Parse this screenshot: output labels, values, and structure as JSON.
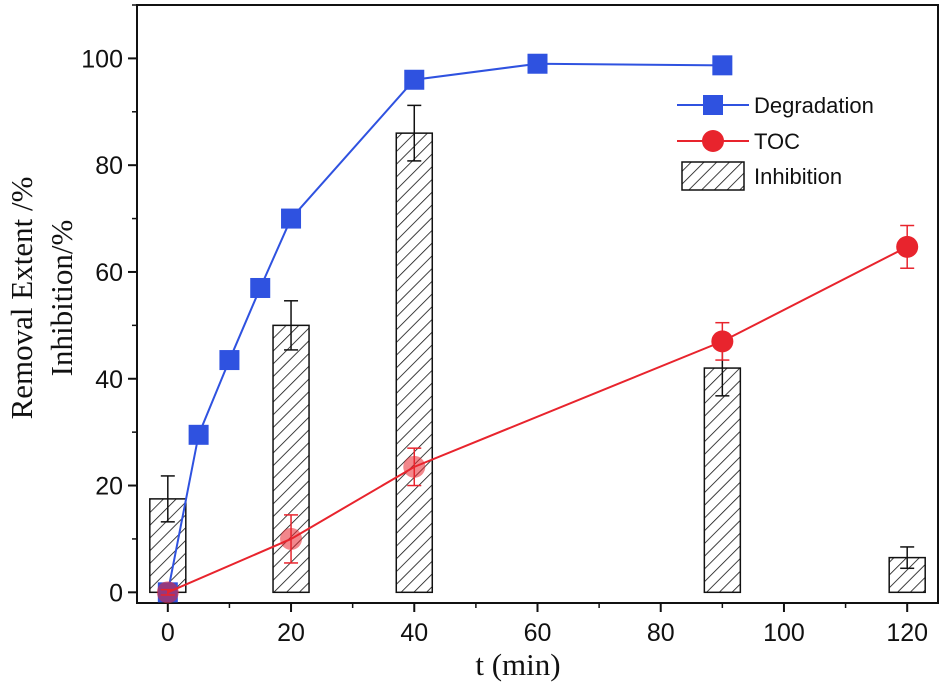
{
  "chart_data": {
    "type": "bar-line-combo",
    "xlabel": "t (min)",
    "ylabel_lines": [
      "Removal Extent /%",
      "Inhibition/%"
    ],
    "xlim": [
      -5,
      125
    ],
    "ylim": [
      -2,
      110
    ],
    "xticks": [
      "0",
      "20",
      "40",
      "60",
      "80",
      "100",
      "120"
    ],
    "yticks": [
      "0",
      "20",
      "40",
      "60",
      "80",
      "100"
    ],
    "legend_position": "top-right",
    "bars": {
      "name": "Inhibition",
      "x": [
        0,
        20,
        40,
        90,
        120
      ],
      "values": [
        17.5,
        50,
        86,
        42,
        6.5
      ],
      "errors": [
        4.3,
        4.6,
        5.2,
        5.2,
        2.0
      ],
      "fill": "hatched",
      "color": "#000000"
    },
    "series": [
      {
        "name": "Degradation",
        "marker": "square",
        "color": "#2f52e0",
        "x": [
          0,
          5,
          10,
          15,
          20,
          40,
          60,
          90
        ],
        "values": [
          0,
          29.5,
          43.5,
          57,
          70,
          96,
          99,
          98.7
        ],
        "errors": [
          0.8,
          0.8,
          0.8,
          1.2,
          1.0,
          0.8,
          0.8,
          0.8
        ]
      },
      {
        "name": "TOC",
        "marker": "circle",
        "color": "#e8242d",
        "x": [
          0,
          20,
          40,
          90,
          120
        ],
        "values": [
          0,
          10,
          23.5,
          47,
          64.7
        ],
        "errors": [
          0.5,
          4.5,
          3.5,
          3.5,
          4.0
        ]
      }
    ]
  }
}
